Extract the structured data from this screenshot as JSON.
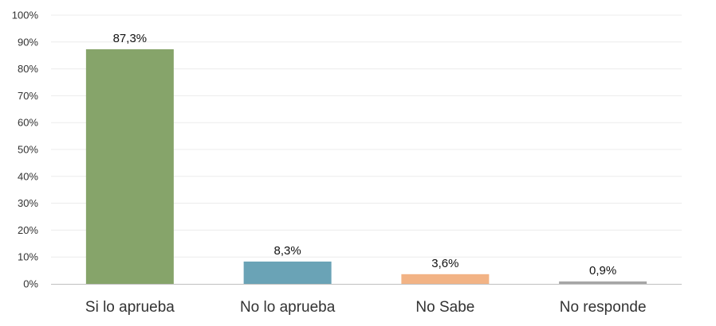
{
  "chart_data": {
    "type": "bar",
    "categories": [
      "Si lo aprueba",
      "No lo aprueba",
      "No Sabe",
      "No responde"
    ],
    "values": [
      87.3,
      8.3,
      3.6,
      0.9
    ],
    "data_labels": [
      "87,3%",
      "8,3%",
      "3,6%",
      "0,9%"
    ],
    "colors": [
      "#86a46a",
      "#6aa3b6",
      "#f2b385",
      "#a6a6a6"
    ],
    "ylim": [
      0,
      100
    ],
    "yticks": [
      "0%",
      "10%",
      "20%",
      "30%",
      "40%",
      "50%",
      "60%",
      "70%",
      "80%",
      "90%",
      "100%"
    ],
    "grid": true,
    "legend": "none"
  }
}
